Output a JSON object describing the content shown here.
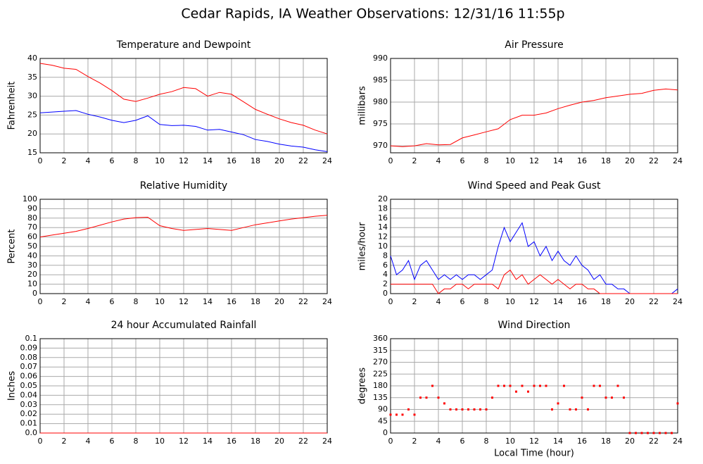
{
  "title": "Cedar Rapids, IA Weather Observations: 12/31/16 11:55p",
  "chart_data": [
    {
      "type": "line",
      "title": "Temperature and Dewpoint",
      "ylabel": "Fahrenheit",
      "x": [
        0,
        1,
        2,
        3,
        4,
        5,
        6,
        7,
        8,
        9,
        10,
        11,
        12,
        13,
        14,
        15,
        16,
        17,
        18,
        19,
        20,
        21,
        22,
        23,
        24
      ],
      "series": [
        {
          "color": "#ff0000",
          "values": [
            38.7,
            38.2,
            37.4,
            37.1,
            35.2,
            33.5,
            31.5,
            29.2,
            28.6,
            29.5,
            30.5,
            31.2,
            32.3,
            32.0,
            30.0,
            31.0,
            30.5,
            28.5,
            26.5,
            25.2,
            24.0,
            23.0,
            22.3,
            21.0,
            20.0
          ]
        },
        {
          "color": "#0000ff",
          "values": [
            25.6,
            25.8,
            26.0,
            26.2,
            25.2,
            24.5,
            23.6,
            23.0,
            23.6,
            24.8,
            22.5,
            22.2,
            22.3,
            22.0,
            21.0,
            21.2,
            20.5,
            19.8,
            18.5,
            18.0,
            17.3,
            16.8,
            16.5,
            15.8,
            15.3
          ]
        }
      ],
      "xlim": [
        0,
        24
      ],
      "xticks": [
        0,
        2,
        4,
        6,
        8,
        10,
        12,
        14,
        16,
        18,
        20,
        22,
        24
      ],
      "ylim": [
        15,
        40
      ],
      "yticks": [
        15,
        20,
        25,
        30,
        35,
        40
      ],
      "grid": true
    },
    {
      "type": "line",
      "title": "Air Pressure",
      "ylabel": "millibars",
      "x": [
        0,
        1,
        2,
        3,
        4,
        5,
        6,
        7,
        8,
        9,
        10,
        11,
        12,
        13,
        14,
        15,
        16,
        17,
        18,
        19,
        20,
        21,
        22,
        23,
        24
      ],
      "series": [
        {
          "color": "#ff0000",
          "values": [
            970,
            969.8,
            970,
            970.5,
            970.2,
            970.3,
            971.8,
            972.5,
            973.2,
            973.9,
            976,
            977,
            977,
            977.5,
            978.5,
            979.3,
            980,
            980.4,
            981,
            981.4,
            981.8,
            982,
            982.7,
            983,
            982.8
          ]
        }
      ],
      "xlim": [
        0,
        24
      ],
      "xticks": [
        0,
        2,
        4,
        6,
        8,
        10,
        12,
        14,
        16,
        18,
        20,
        22,
        24
      ],
      "ylim": [
        968.4,
        990
      ],
      "yticks": [
        970,
        975,
        980,
        985,
        990
      ],
      "grid": true
    },
    {
      "type": "line",
      "title": "Relative Humidity",
      "ylabel": "Percent",
      "x": [
        0,
        1,
        2,
        3,
        4,
        5,
        6,
        7,
        8,
        9,
        10,
        11,
        12,
        13,
        14,
        15,
        16,
        17,
        18,
        19,
        20,
        21,
        22,
        23,
        24
      ],
      "series": [
        {
          "color": "#ff0000",
          "values": [
            60,
            62,
            64,
            66,
            69,
            72.5,
            76,
            79,
            80.5,
            81,
            72,
            69,
            67,
            68,
            69,
            68,
            67,
            70,
            73,
            75,
            77,
            79,
            80.5,
            82,
            83
          ]
        }
      ],
      "xlim": [
        0,
        24
      ],
      "xticks": [
        0,
        2,
        4,
        6,
        8,
        10,
        12,
        14,
        16,
        18,
        20,
        22,
        24
      ],
      "ylim": [
        0,
        100
      ],
      "yticks": [
        0,
        10,
        20,
        30,
        40,
        50,
        60,
        70,
        80,
        90,
        100
      ],
      "grid": true
    },
    {
      "type": "line",
      "title": "Wind Speed and Peak Gust",
      "ylabel": "miles/hour",
      "x": [
        0,
        0.5,
        1,
        1.5,
        2,
        2.5,
        3,
        3.5,
        4,
        4.5,
        5,
        5.5,
        6,
        6.5,
        7,
        7.5,
        8,
        8.5,
        9,
        9.5,
        10,
        10.5,
        11,
        11.5,
        12,
        12.5,
        13,
        13.5,
        14,
        14.5,
        15,
        15.5,
        16,
        16.5,
        17,
        17.5,
        18,
        18.5,
        19,
        19.5,
        20,
        20.5,
        21,
        21.5,
        22,
        22.5,
        23,
        23.5,
        24
      ],
      "series": [
        {
          "color": "#0000ff",
          "values": [
            8,
            4,
            5,
            7,
            3,
            6,
            7,
            5,
            3,
            4,
            3,
            4,
            3,
            4,
            4,
            3,
            4,
            5,
            10,
            14,
            11,
            13,
            15,
            10,
            11,
            8,
            10,
            7,
            9,
            7,
            6,
            8,
            6,
            5,
            3,
            4,
            2,
            2,
            1,
            1,
            0,
            0,
            0,
            0,
            0,
            0,
            0,
            0,
            1
          ]
        },
        {
          "color": "#ff0000",
          "values": [
            2,
            2,
            2,
            2,
            2,
            2,
            2,
            2,
            0,
            1,
            1,
            2,
            2,
            1,
            2,
            2,
            2,
            2,
            1,
            4,
            5,
            3,
            4,
            2,
            3,
            4,
            3,
            2,
            3,
            2,
            1,
            2,
            2,
            1,
            1,
            0,
            0,
            0,
            0,
            0,
            0,
            0,
            0,
            0,
            0,
            0,
            0,
            0,
            0
          ]
        }
      ],
      "xlim": [
        0,
        24
      ],
      "xticks": [
        0,
        2,
        4,
        6,
        8,
        10,
        12,
        14,
        16,
        18,
        20,
        22,
        24
      ],
      "ylim": [
        0,
        20
      ],
      "yticks": [
        0,
        2,
        4,
        6,
        8,
        10,
        12,
        14,
        16,
        18,
        20
      ],
      "grid": true
    },
    {
      "type": "line",
      "title": "24 hour Accumulated Rainfall",
      "ylabel": "Inches",
      "x": [
        0,
        1,
        2,
        3,
        4,
        5,
        6,
        7,
        8,
        9,
        10,
        11,
        12,
        13,
        14,
        15,
        16,
        17,
        18,
        19,
        20,
        21,
        22,
        23,
        24
      ],
      "series": [
        {
          "color": "#ff0000",
          "values": [
            0,
            0,
            0,
            0,
            0,
            0,
            0,
            0,
            0,
            0,
            0,
            0,
            0,
            0,
            0,
            0,
            0,
            0,
            0,
            0,
            0,
            0,
            0,
            0,
            0
          ]
        }
      ],
      "xlim": [
        0,
        24
      ],
      "xticks": [
        0,
        2,
        4,
        6,
        8,
        10,
        12,
        14,
        16,
        18,
        20,
        22,
        24
      ],
      "ylim": [
        0,
        0.1
      ],
      "yticks": [
        {
          "value": 0,
          "label": "0.0"
        },
        0.01,
        0.02,
        0.03,
        0.04,
        0.05,
        0.06,
        0.07,
        0.08,
        0.09,
        0.1
      ],
      "grid": true
    },
    {
      "type": "scatter",
      "title": "Wind Direction",
      "ylabel": "degrees",
      "xlabel": "Local Time (hour)",
      "x": [
        0,
        0.5,
        1,
        1.5,
        2,
        2.5,
        3,
        3.5,
        4,
        4.5,
        5,
        5.5,
        6,
        6.5,
        7,
        7.5,
        8,
        8.5,
        9,
        9.5,
        10,
        10.5,
        11,
        11.5,
        12,
        12.5,
        13,
        13.5,
        14,
        14.5,
        15,
        15.5,
        16,
        16.5,
        17,
        17.5,
        18,
        18.5,
        19,
        19.5,
        20,
        20.5,
        21,
        21.5,
        22,
        22.5,
        23,
        23.5,
        24
      ],
      "series": [
        {
          "color": "#ff0000",
          "values": [
            70,
            70,
            70,
            90,
            70,
            135,
            135,
            180,
            135,
            113,
            90,
            90,
            90,
            90,
            90,
            90,
            90,
            135,
            180,
            180,
            180,
            158,
            180,
            158,
            180,
            180,
            180,
            90,
            113,
            180,
            90,
            90,
            135,
            90,
            180,
            180,
            135,
            135,
            180,
            135,
            0,
            0,
            0,
            0,
            0,
            0,
            0,
            0,
            113
          ]
        }
      ],
      "xlim": [
        0,
        24
      ],
      "xticks": [
        0,
        2,
        4,
        6,
        8,
        10,
        12,
        14,
        16,
        18,
        20,
        22,
        24
      ],
      "ylim": [
        0,
        360
      ],
      "yticks": [
        0,
        45,
        90,
        135,
        180,
        225,
        270,
        315,
        360
      ],
      "grid": true
    }
  ]
}
